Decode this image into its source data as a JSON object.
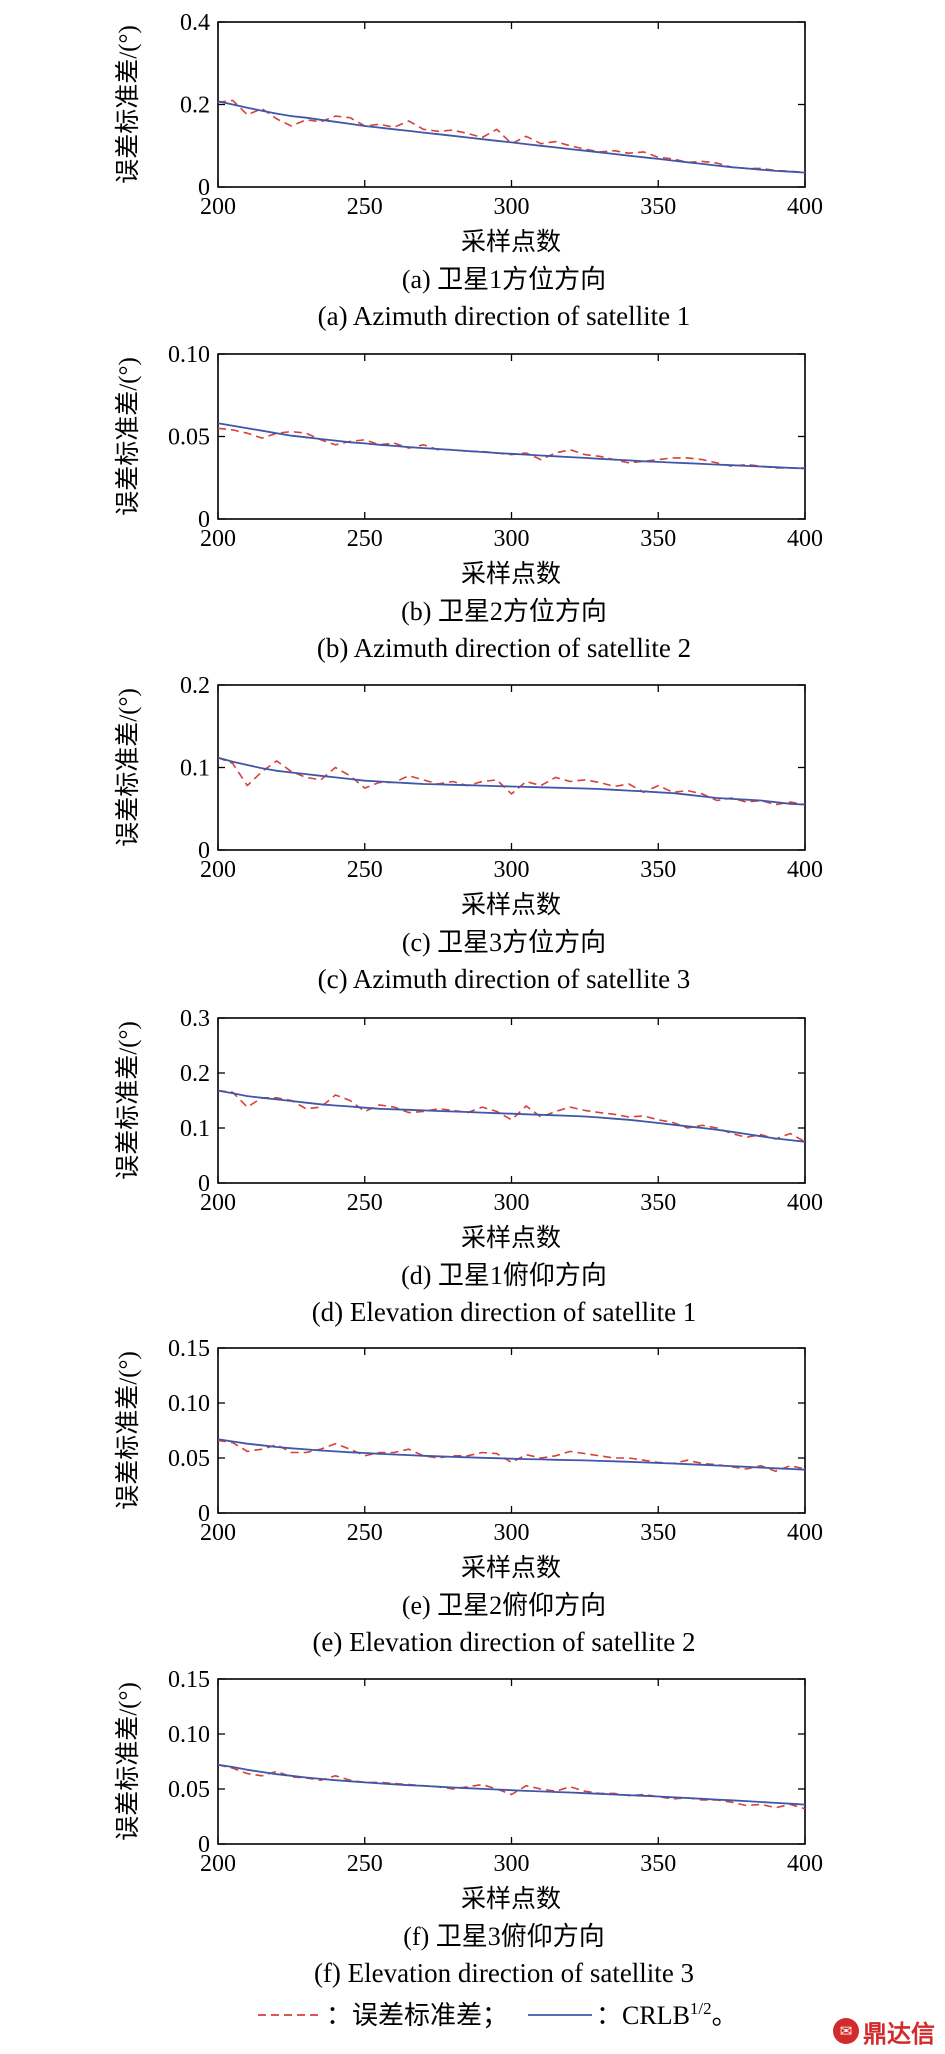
{
  "chart_data": [
    {
      "type": "line",
      "ylabel": "误差标准差/(°)",
      "xlabel": "采样点数",
      "caption_cn": "(a) 卫星1方位方向",
      "caption_en": "(a) Azimuth direction of satellite 1",
      "xlim": [
        200,
        400
      ],
      "ylim": [
        0,
        0.4
      ],
      "xticks": [
        200,
        250,
        300,
        350,
        400
      ],
      "xtick_labels": [
        "200",
        "250",
        "300",
        "350",
        "400"
      ],
      "yticks": [
        0,
        0.2,
        0.4
      ],
      "ytick_labels": [
        "0",
        "0.2",
        "0.4"
      ],
      "x": [
        200,
        205,
        210,
        215,
        220,
        225,
        230,
        235,
        240,
        245,
        250,
        255,
        260,
        265,
        270,
        275,
        280,
        285,
        290,
        295,
        300,
        305,
        310,
        315,
        320,
        325,
        330,
        335,
        340,
        345,
        350,
        355,
        360,
        365,
        370,
        375,
        380,
        385,
        390,
        395,
        400
      ],
      "series": [
        {
          "name": "误差标准差",
          "style": "dashed",
          "color": "#d6413a",
          "values": [
            0.205,
            0.21,
            0.175,
            0.19,
            0.165,
            0.148,
            0.163,
            0.158,
            0.172,
            0.168,
            0.148,
            0.152,
            0.145,
            0.16,
            0.14,
            0.135,
            0.138,
            0.13,
            0.12,
            0.14,
            0.105,
            0.123,
            0.105,
            0.11,
            0.1,
            0.092,
            0.085,
            0.088,
            0.082,
            0.085,
            0.072,
            0.068,
            0.06,
            0.062,
            0.058,
            0.048,
            0.045,
            0.045,
            0.04,
            0.038,
            0.036
          ]
        },
        {
          "name": "CRLB^(1/2)",
          "style": "solid",
          "color": "#3f57a8",
          "values": [
            0.208,
            0.2,
            0.192,
            0.185,
            0.178,
            0.172,
            0.168,
            0.163,
            0.158,
            0.153,
            0.148,
            0.144,
            0.14,
            0.136,
            0.132,
            0.128,
            0.124,
            0.12,
            0.116,
            0.112,
            0.108,
            0.104,
            0.1,
            0.096,
            0.092,
            0.088,
            0.084,
            0.08,
            0.076,
            0.072,
            0.068,
            0.064,
            0.06,
            0.056,
            0.052,
            0.048,
            0.045,
            0.042,
            0.039,
            0.037,
            0.035
          ]
        }
      ]
    },
    {
      "type": "line",
      "ylabel": "误差标准差/(°)",
      "xlabel": "采样点数",
      "caption_cn": "(b) 卫星2方位方向",
      "caption_en": "(b) Azimuth direction of satellite 2",
      "xlim": [
        200,
        400
      ],
      "ylim": [
        0,
        0.1
      ],
      "xticks": [
        200,
        250,
        300,
        350,
        400
      ],
      "xtick_labels": [
        "200",
        "250",
        "300",
        "350",
        "400"
      ],
      "yticks": [
        0,
        0.05,
        0.1
      ],
      "ytick_labels": [
        "0",
        "0.05",
        "0.10"
      ],
      "x": [
        200,
        205,
        210,
        215,
        220,
        225,
        230,
        235,
        240,
        245,
        250,
        255,
        260,
        265,
        270,
        275,
        280,
        285,
        290,
        295,
        300,
        305,
        310,
        315,
        320,
        325,
        330,
        335,
        340,
        345,
        350,
        355,
        360,
        365,
        370,
        375,
        380,
        385,
        390,
        395,
        400
      ],
      "series": [
        {
          "name": "误差标准差",
          "style": "dashed",
          "color": "#d6413a",
          "values": [
            0.055,
            0.054,
            0.052,
            0.049,
            0.052,
            0.053,
            0.052,
            0.048,
            0.045,
            0.047,
            0.048,
            0.045,
            0.046,
            0.043,
            0.045,
            0.042,
            0.042,
            0.041,
            0.041,
            0.04,
            0.039,
            0.04,
            0.036,
            0.04,
            0.042,
            0.039,
            0.038,
            0.036,
            0.034,
            0.035,
            0.036,
            0.037,
            0.037,
            0.036,
            0.034,
            0.032,
            0.033,
            0.032,
            0.031,
            0.031,
            0.031
          ]
        },
        {
          "name": "CRLB^(1/2)",
          "style": "solid",
          "color": "#3f57a8",
          "values": [
            0.058,
            0.0565,
            0.055,
            0.0535,
            0.052,
            0.0505,
            0.0495,
            0.0485,
            0.0475,
            0.0465,
            0.0458,
            0.045,
            0.0443,
            0.0436,
            0.043,
            0.0424,
            0.0418,
            0.0412,
            0.0406,
            0.04,
            0.0395,
            0.039,
            0.0385,
            0.038,
            0.0375,
            0.037,
            0.0365,
            0.036,
            0.0355,
            0.035,
            0.0346,
            0.0342,
            0.0338,
            0.0334,
            0.033,
            0.0326,
            0.0322,
            0.0318,
            0.0314,
            0.031,
            0.0306
          ]
        }
      ]
    },
    {
      "type": "line",
      "ylabel": "误差标准差/(°)",
      "xlabel": "采样点数",
      "caption_cn": "(c) 卫星3方位方向",
      "caption_en": "(c) Azimuth direction of satellite 3",
      "xlim": [
        200,
        400
      ],
      "ylim": [
        0,
        0.2
      ],
      "xticks": [
        200,
        250,
        300,
        350,
        400
      ],
      "xtick_labels": [
        "200",
        "250",
        "300",
        "350",
        "400"
      ],
      "yticks": [
        0,
        0.1,
        0.2
      ],
      "ytick_labels": [
        "0",
        "0.1",
        "0.2"
      ],
      "x": [
        200,
        205,
        210,
        215,
        220,
        225,
        230,
        235,
        240,
        245,
        250,
        255,
        260,
        265,
        270,
        275,
        280,
        285,
        290,
        295,
        300,
        305,
        310,
        315,
        320,
        325,
        330,
        335,
        340,
        345,
        350,
        355,
        360,
        365,
        370,
        375,
        380,
        385,
        390,
        395,
        400
      ],
      "series": [
        {
          "name": "误差标准差",
          "style": "dashed",
          "color": "#d6413a",
          "values": [
            0.112,
            0.105,
            0.078,
            0.095,
            0.108,
            0.095,
            0.088,
            0.085,
            0.1,
            0.09,
            0.075,
            0.082,
            0.082,
            0.09,
            0.085,
            0.08,
            0.083,
            0.078,
            0.083,
            0.085,
            0.068,
            0.083,
            0.078,
            0.088,
            0.083,
            0.085,
            0.082,
            0.077,
            0.08,
            0.07,
            0.078,
            0.07,
            0.072,
            0.068,
            0.06,
            0.063,
            0.058,
            0.06,
            0.055,
            0.058,
            0.055
          ]
        },
        {
          "name": "CRLB^(1/2)",
          "style": "solid",
          "color": "#3f57a8",
          "values": [
            0.112,
            0.107,
            0.103,
            0.099,
            0.096,
            0.094,
            0.092,
            0.09,
            0.088,
            0.086,
            0.084,
            0.083,
            0.082,
            0.081,
            0.08,
            0.0795,
            0.079,
            0.0785,
            0.078,
            0.0775,
            0.077,
            0.0765,
            0.076,
            0.0755,
            0.075,
            0.0745,
            0.074,
            0.073,
            0.072,
            0.071,
            0.07,
            0.069,
            0.067,
            0.065,
            0.063,
            0.062,
            0.061,
            0.06,
            0.058,
            0.056,
            0.055
          ]
        }
      ]
    },
    {
      "type": "line",
      "ylabel": "误差标准差/(°)",
      "xlabel": "采样点数",
      "caption_cn": "(d) 卫星1俯仰方向",
      "caption_en": "(d) Elevation direction of satellite 1",
      "xlim": [
        200,
        400
      ],
      "ylim": [
        0,
        0.3
      ],
      "xticks": [
        200,
        250,
        300,
        350,
        400
      ],
      "xtick_labels": [
        "200",
        "250",
        "300",
        "350",
        "400"
      ],
      "yticks": [
        0,
        0.1,
        0.2,
        0.3
      ],
      "ytick_labels": [
        "0",
        "0.1",
        "0.2",
        "0.3"
      ],
      "x": [
        200,
        205,
        210,
        215,
        220,
        225,
        230,
        235,
        240,
        245,
        250,
        255,
        260,
        265,
        270,
        275,
        280,
        285,
        290,
        295,
        300,
        305,
        310,
        315,
        320,
        325,
        330,
        335,
        340,
        345,
        350,
        355,
        360,
        365,
        370,
        375,
        380,
        385,
        390,
        395,
        400
      ],
      "series": [
        {
          "name": "误差标准差",
          "style": "dashed",
          "color": "#d6413a",
          "values": [
            0.168,
            0.165,
            0.138,
            0.155,
            0.155,
            0.15,
            0.135,
            0.138,
            0.16,
            0.15,
            0.13,
            0.142,
            0.138,
            0.128,
            0.13,
            0.135,
            0.132,
            0.128,
            0.138,
            0.13,
            0.115,
            0.14,
            0.12,
            0.13,
            0.138,
            0.132,
            0.128,
            0.125,
            0.12,
            0.122,
            0.115,
            0.11,
            0.1,
            0.105,
            0.1,
            0.09,
            0.083,
            0.088,
            0.08,
            0.09,
            0.075
          ]
        },
        {
          "name": "CRLB^(1/2)",
          "style": "solid",
          "color": "#3f57a8",
          "values": [
            0.168,
            0.163,
            0.158,
            0.155,
            0.152,
            0.149,
            0.146,
            0.143,
            0.141,
            0.139,
            0.137,
            0.135,
            0.134,
            0.133,
            0.132,
            0.131,
            0.13,
            0.129,
            0.128,
            0.127,
            0.126,
            0.125,
            0.124,
            0.123,
            0.122,
            0.121,
            0.119,
            0.117,
            0.115,
            0.112,
            0.109,
            0.106,
            0.103,
            0.1,
            0.097,
            0.093,
            0.089,
            0.085,
            0.081,
            0.078,
            0.075
          ]
        }
      ]
    },
    {
      "type": "line",
      "ylabel": "误差标准差/(°)",
      "xlabel": "采样点数",
      "caption_cn": "(e) 卫星2俯仰方向",
      "caption_en": "(e) Elevation direction of satellite 2",
      "xlim": [
        200,
        400
      ],
      "ylim": [
        0,
        0.15
      ],
      "xticks": [
        200,
        250,
        300,
        350,
        400
      ],
      "xtick_labels": [
        "200",
        "250",
        "300",
        "350",
        "400"
      ],
      "yticks": [
        0,
        0.05,
        0.1,
        0.15
      ],
      "ytick_labels": [
        "0",
        "0.05",
        "0.10",
        "0.15"
      ],
      "x": [
        200,
        205,
        210,
        215,
        220,
        225,
        230,
        235,
        240,
        245,
        250,
        255,
        260,
        265,
        270,
        275,
        280,
        285,
        290,
        295,
        300,
        305,
        310,
        315,
        320,
        325,
        330,
        335,
        340,
        345,
        350,
        355,
        360,
        365,
        370,
        375,
        380,
        385,
        390,
        395,
        400
      ],
      "series": [
        {
          "name": "误差标准差",
          "style": "dashed",
          "color": "#d6413a",
          "values": [
            0.066,
            0.064,
            0.056,
            0.058,
            0.062,
            0.055,
            0.055,
            0.058,
            0.063,
            0.058,
            0.052,
            0.055,
            0.055,
            0.058,
            0.052,
            0.05,
            0.052,
            0.052,
            0.055,
            0.054,
            0.046,
            0.053,
            0.05,
            0.052,
            0.056,
            0.054,
            0.052,
            0.05,
            0.05,
            0.048,
            0.046,
            0.045,
            0.048,
            0.045,
            0.044,
            0.042,
            0.04,
            0.043,
            0.038,
            0.043,
            0.04
          ]
        },
        {
          "name": "CRLB^(1/2)",
          "style": "solid",
          "color": "#3f57a8",
          "values": [
            0.067,
            0.065,
            0.063,
            0.0615,
            0.06,
            0.0588,
            0.0578,
            0.0568,
            0.056,
            0.0552,
            0.0545,
            0.0538,
            0.0532,
            0.0526,
            0.052,
            0.0515,
            0.051,
            0.0506,
            0.0502,
            0.0498,
            0.0494,
            0.049,
            0.0487,
            0.0484,
            0.0481,
            0.0478,
            0.0474,
            0.047,
            0.0465,
            0.046,
            0.0455,
            0.045,
            0.0444,
            0.0438,
            0.0432,
            0.0426,
            0.042,
            0.0413,
            0.0406,
            0.04,
            0.0394
          ]
        }
      ]
    },
    {
      "type": "line",
      "ylabel": "误差标准差/(°)",
      "xlabel": "采样点数",
      "caption_cn": "(f) 卫星3俯仰方向",
      "caption_en": "(f) Elevation direction of satellite 3",
      "xlim": [
        200,
        400
      ],
      "ylim": [
        0,
        0.15
      ],
      "xticks": [
        200,
        250,
        300,
        350,
        400
      ],
      "xtick_labels": [
        "200",
        "250",
        "300",
        "350",
        "400"
      ],
      "yticks": [
        0,
        0.05,
        0.1,
        0.15
      ],
      "ytick_labels": [
        "0",
        "0.05",
        "0.10",
        "0.15"
      ],
      "x": [
        200,
        205,
        210,
        215,
        220,
        225,
        230,
        235,
        240,
        245,
        250,
        255,
        260,
        265,
        270,
        275,
        280,
        285,
        290,
        295,
        300,
        305,
        310,
        315,
        320,
        325,
        330,
        335,
        340,
        345,
        350,
        355,
        360,
        365,
        370,
        375,
        380,
        385,
        390,
        395,
        400
      ],
      "series": [
        {
          "name": "误差标准差",
          "style": "dashed",
          "color": "#d6413a",
          "values": [
            0.072,
            0.069,
            0.064,
            0.062,
            0.066,
            0.061,
            0.06,
            0.058,
            0.062,
            0.058,
            0.056,
            0.056,
            0.055,
            0.054,
            0.053,
            0.052,
            0.05,
            0.052,
            0.054,
            0.05,
            0.045,
            0.053,
            0.05,
            0.048,
            0.052,
            0.048,
            0.046,
            0.046,
            0.044,
            0.045,
            0.043,
            0.041,
            0.042,
            0.04,
            0.04,
            0.038,
            0.035,
            0.036,
            0.033,
            0.036,
            0.032
          ]
        },
        {
          "name": "CRLB^(1/2)",
          "style": "solid",
          "color": "#3f57a8",
          "values": [
            0.072,
            0.07,
            0.0675,
            0.0655,
            0.0635,
            0.062,
            0.0605,
            0.0592,
            0.058,
            0.057,
            0.056,
            0.0551,
            0.0543,
            0.0535,
            0.0528,
            0.0521,
            0.0514,
            0.0507,
            0.0501,
            0.0495,
            0.0489,
            0.0483,
            0.0478,
            0.0473,
            0.0468,
            0.0462,
            0.0456,
            0.045,
            0.0444,
            0.0438,
            0.0432,
            0.0425,
            0.0418,
            0.0411,
            0.0404,
            0.0397,
            0.039,
            0.0382,
            0.0374,
            0.0366,
            0.0358
          ]
        }
      ]
    }
  ],
  "legend": {
    "entries": [
      {
        "label": "：误差标准差；",
        "style": "dashed",
        "color": "#d6413a"
      },
      {
        "label": "：CRLB",
        "sup": "1/2",
        "tail": "。",
        "style": "solid",
        "color": "#3f57a8"
      }
    ]
  },
  "watermark": {
    "icon": "dingdaxin-logo-icon",
    "text": "鼎达信"
  }
}
